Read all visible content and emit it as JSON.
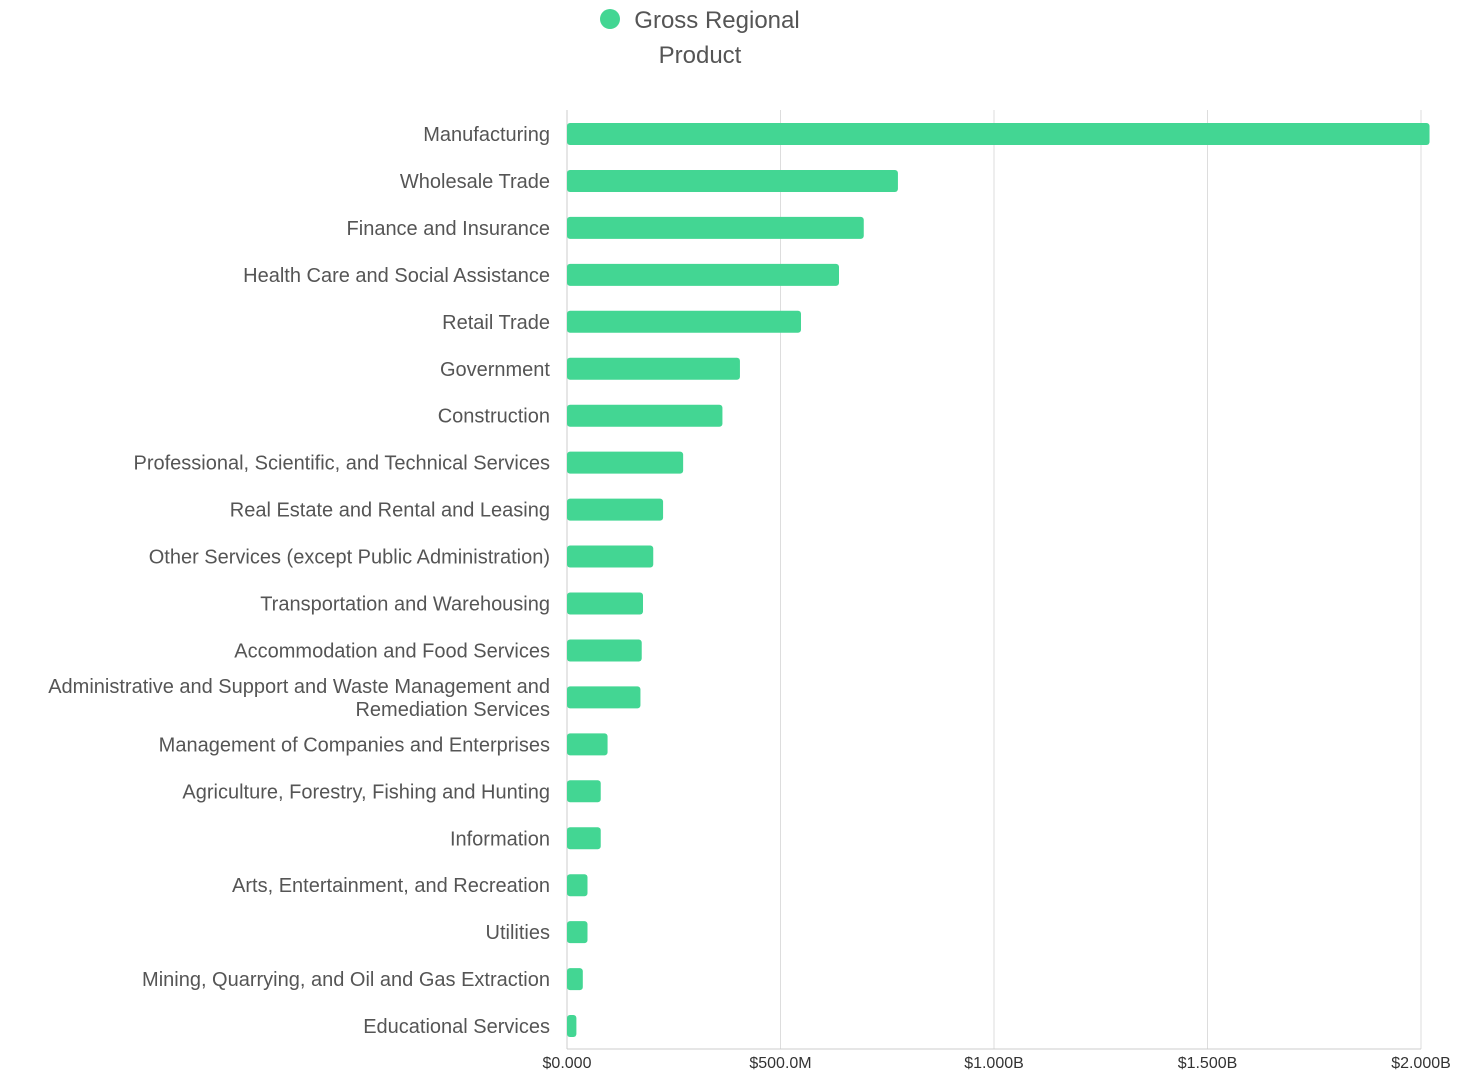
{
  "chart_data": {
    "type": "bar",
    "orientation": "horizontal",
    "categories": [
      "Manufacturing",
      "Wholesale Trade",
      "Finance and Insurance",
      "Health Care and Social Assistance",
      "Retail Trade",
      "Government",
      "Construction",
      "Professional, Scientific, and Technical Services",
      "Real Estate and Rental and Leasing",
      "Other Services (except Public Administration)",
      "Transportation and Warehousing",
      "Accommodation and Food Services",
      "Administrative and Support and Waste Management and Remediation Services",
      "Management of Companies and Enterprises",
      "Agriculture, Forestry, Fishing and Hunting",
      "Information",
      "Arts, Entertainment, and Recreation",
      "Utilities",
      "Mining, Quarrying, and Oil and Gas Extraction",
      "Educational Services"
    ],
    "category_label_lines": {
      "Administrative and Support and Waste Management and Remediation Services": [
        "Administrative and Support and Waste Management and",
        "Remediation Services"
      ]
    },
    "series": [
      {
        "name": "Gross Regional Product",
        "color": "#43d693",
        "values": [
          2020000000,
          775000000,
          695000000,
          637000000,
          548000000,
          405000000,
          364000000,
          272000000,
          225000000,
          202000000,
          178000000,
          175000000,
          172000000,
          95000000,
          79000000,
          79000000,
          48000000,
          48000000,
          37000000,
          22000000
        ]
      }
    ],
    "xlim": [
      0,
      2000000000
    ],
    "x_ticks": [
      0,
      500000000,
      1000000000,
      1500000000,
      2000000000
    ],
    "x_tick_labels": [
      "$0.000",
      "$500.0M",
      "$1.000B",
      "$1.500B",
      "$2.000B"
    ],
    "legend": {
      "placement": "top-center",
      "label_lines": [
        "Gross Regional",
        "Product"
      ]
    },
    "grid": {
      "vertical": true,
      "horizontal": false,
      "color": "#dddddd"
    },
    "title": "",
    "xlabel": "",
    "ylabel": ""
  }
}
